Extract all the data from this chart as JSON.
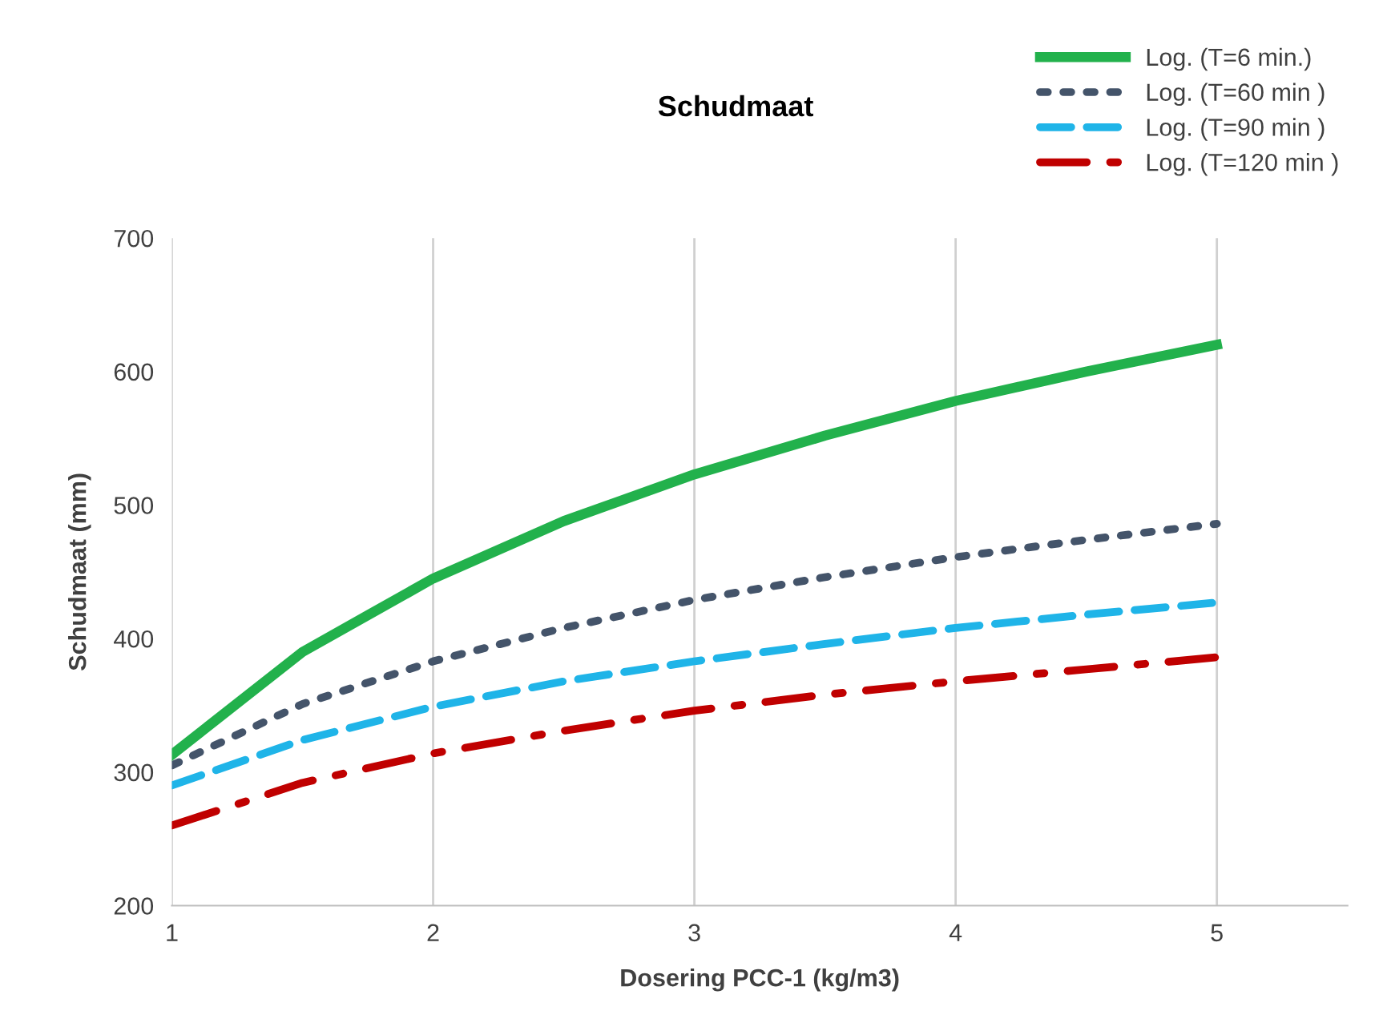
{
  "chart_data": {
    "type": "line",
    "title": "Schudmaat",
    "xlabel": "Dosering PCC-1 (kg/m3)",
    "ylabel": "Schudmaat (mm)",
    "x": [
      1,
      1.5,
      2,
      2.5,
      3,
      3.5,
      4,
      4.5,
      5
    ],
    "series": [
      {
        "name": "Log. (T=6 min.)",
        "color": "#22b14c",
        "line_style": "solid",
        "values": [
          313,
          390,
          445,
          488,
          523,
          552,
          578,
          600,
          620
        ]
      },
      {
        "name": "Log. (T=60 min )",
        "color": "#44546a",
        "line_style": "dotted",
        "values": [
          305,
          351,
          383,
          408,
          429,
          446,
          461,
          474,
          486
        ]
      },
      {
        "name": "Log. (T=90 min )",
        "color": "#1fb4e8",
        "line_style": "dashed",
        "values": [
          290,
          324,
          349,
          368,
          383,
          396,
          408,
          418,
          427
        ]
      },
      {
        "name": "Log. (T=120 min )",
        "color": "#c00000",
        "line_style": "dashdot",
        "values": [
          260,
          292,
          314,
          331,
          346,
          358,
          368,
          377,
          386
        ]
      }
    ],
    "xlim": [
      1,
      5.5
    ],
    "xticks": [
      1,
      2,
      3,
      4,
      5
    ],
    "ylim": [
      200,
      700
    ],
    "yticks": [
      200,
      300,
      400,
      500,
      600,
      700
    ],
    "grid": "x",
    "legend": "top right",
    "marker": "none"
  }
}
